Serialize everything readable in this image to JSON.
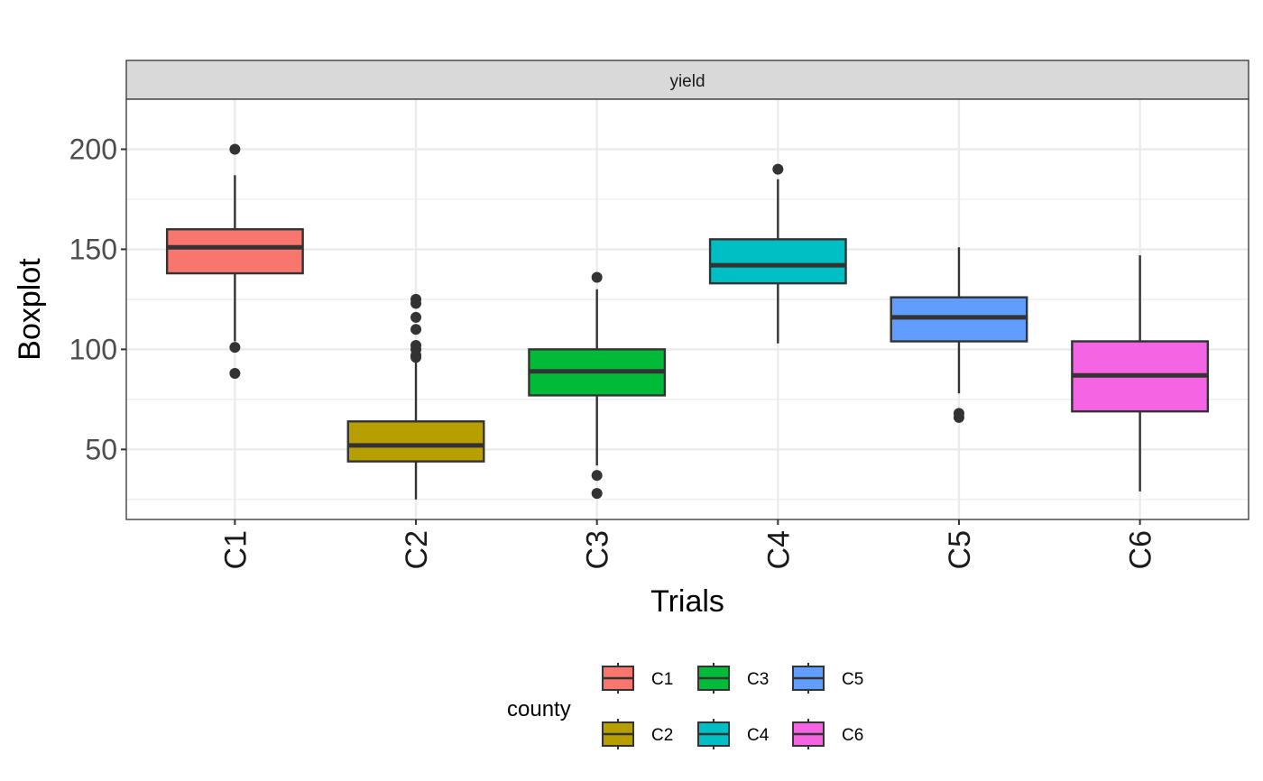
{
  "chart_data": {
    "type": "boxplot",
    "facet_label": "yield",
    "xlabel": "Trials",
    "ylabel": "Boxplot",
    "categories": [
      "C1",
      "C2",
      "C3",
      "C4",
      "C5",
      "C6"
    ],
    "y_ticks": [
      50,
      100,
      150,
      200
    ],
    "ylim": [
      15,
      225
    ],
    "grid": true,
    "legend": {
      "title": "county",
      "position": "bottom",
      "ncol": 3
    },
    "boxes": [
      {
        "name": "C1",
        "color": "#F8766D",
        "whisker_low": 104,
        "q1": 138,
        "median": 151,
        "q3": 160,
        "whisker_high": 187,
        "outliers": [
          200,
          101,
          88
        ]
      },
      {
        "name": "C2",
        "color": "#B79F00",
        "whisker_low": 25,
        "q1": 44,
        "median": 52,
        "q3": 64,
        "whisker_high": 95,
        "outliers": [
          125,
          123,
          116,
          110,
          102,
          100,
          97,
          96
        ]
      },
      {
        "name": "C3",
        "color": "#00BA38",
        "whisker_low": 42,
        "q1": 77,
        "median": 89,
        "q3": 100,
        "whisker_high": 130,
        "outliers": [
          136,
          37,
          28
        ]
      },
      {
        "name": "C4",
        "color": "#00BFC4",
        "whisker_low": 103,
        "q1": 133,
        "median": 142,
        "q3": 155,
        "whisker_high": 185,
        "outliers": [
          190
        ]
      },
      {
        "name": "C5",
        "color": "#619CFF",
        "whisker_low": 78,
        "q1": 104,
        "median": 116,
        "q3": 126,
        "whisker_high": 151,
        "outliers": [
          68,
          66
        ]
      },
      {
        "name": "C6",
        "color": "#F564E3",
        "whisker_low": 29,
        "q1": 69,
        "median": 87,
        "q3": 104,
        "whisker_high": 147,
        "outliers": []
      }
    ]
  }
}
